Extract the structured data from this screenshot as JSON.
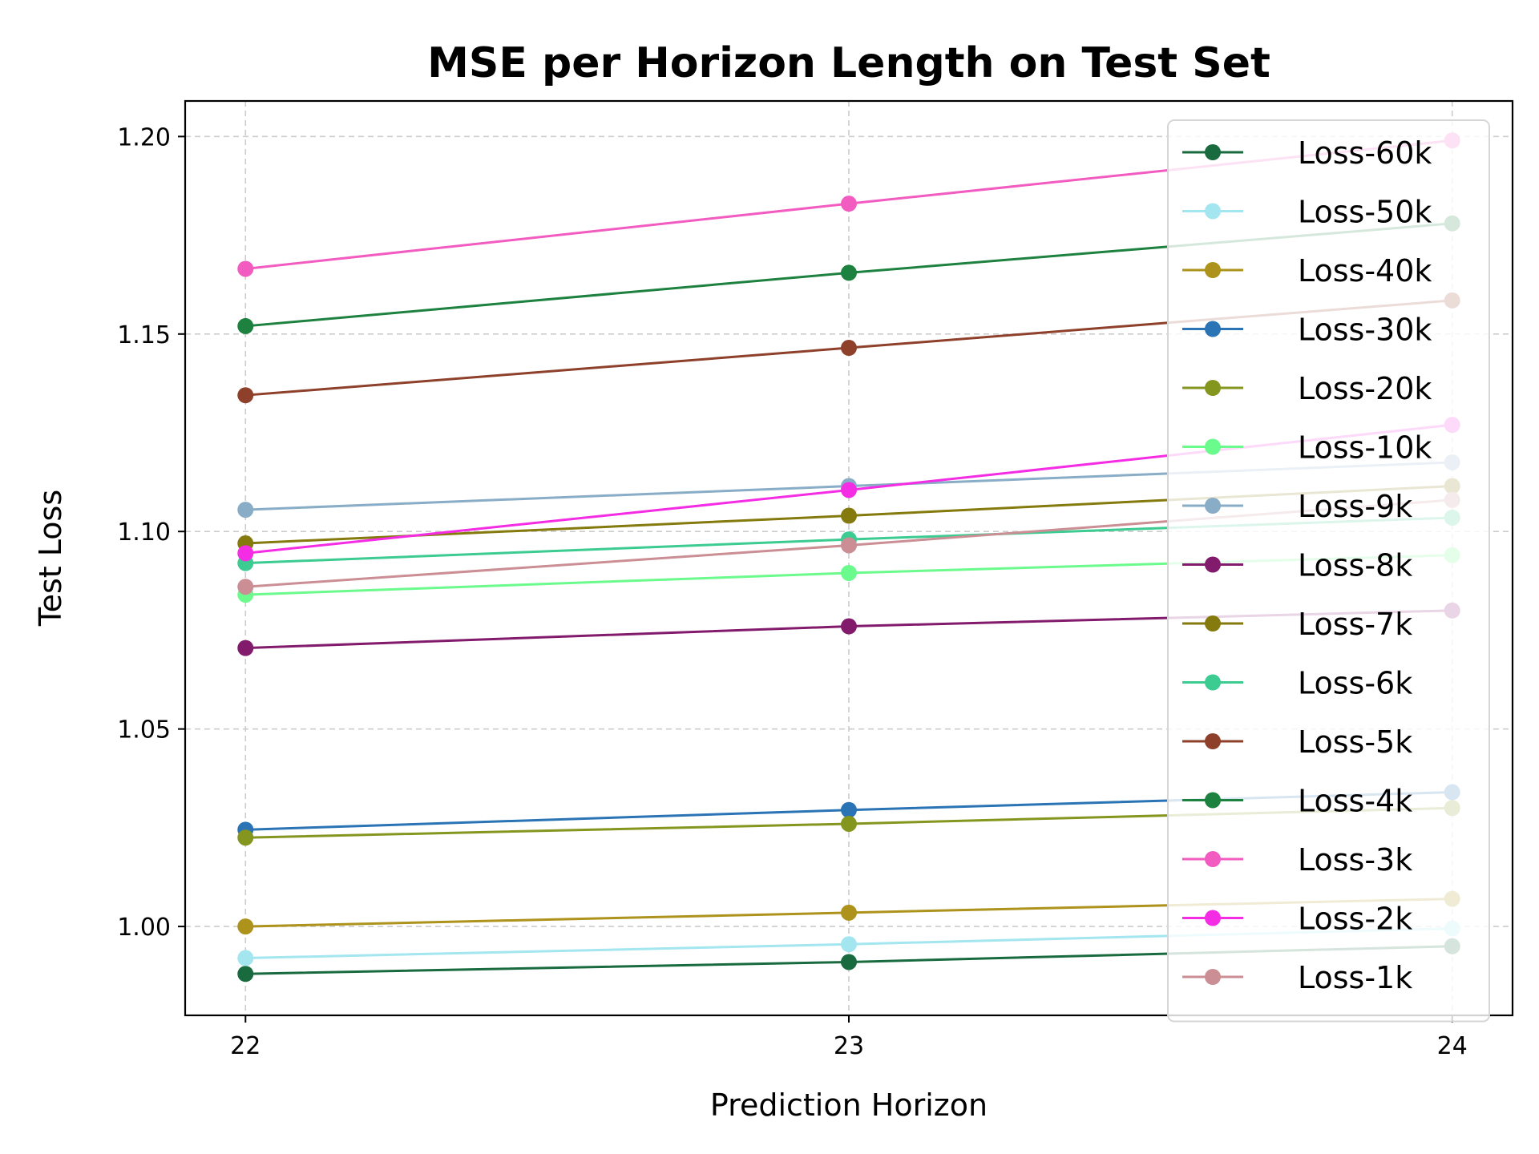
{
  "chart_data": {
    "type": "line",
    "title": "MSE per Horizon Length on Test Set",
    "xlabel": "Prediction Horizon",
    "ylabel": "Test Loss",
    "x": [
      22,
      23,
      24
    ],
    "x_ticks": [
      "22",
      "23",
      "24"
    ],
    "y_ticks": [
      "1.00",
      "1.05",
      "1.10",
      "1.15",
      "1.20"
    ],
    "xlim": [
      21.9,
      24.1
    ],
    "ylim": [
      0.9775,
      1.209
    ],
    "grid": true,
    "legend_position": "upper right",
    "series": [
      {
        "name": "Loss-60k",
        "color": "#196b3f",
        "values": [
          0.988,
          0.991,
          0.995
        ]
      },
      {
        "name": "Loss-50k",
        "color": "#a3e6f0",
        "values": [
          0.992,
          0.9955,
          0.9995
        ]
      },
      {
        "name": "Loss-40k",
        "color": "#ad921b",
        "values": [
          1.0,
          1.0035,
          1.007
        ]
      },
      {
        "name": "Loss-30k",
        "color": "#2a73b4",
        "values": [
          1.0245,
          1.0295,
          1.034
        ]
      },
      {
        "name": "Loss-20k",
        "color": "#85961f",
        "values": [
          1.0225,
          1.026,
          1.03
        ]
      },
      {
        "name": "Loss-10k",
        "color": "#6bfa8c",
        "values": [
          1.084,
          1.0895,
          1.094
        ]
      },
      {
        "name": "Loss-9k",
        "color": "#89adc7",
        "values": [
          1.1055,
          1.1115,
          1.1175
        ]
      },
      {
        "name": "Loss-8k",
        "color": "#831b6d",
        "values": [
          1.0705,
          1.076,
          1.08
        ]
      },
      {
        "name": "Loss-7k",
        "color": "#857a0d",
        "values": [
          1.097,
          1.104,
          1.1115
        ]
      },
      {
        "name": "Loss-6k",
        "color": "#3ccb91",
        "values": [
          1.092,
          1.098,
          1.1035
        ]
      },
      {
        "name": "Loss-5k",
        "color": "#8e402b",
        "values": [
          1.1345,
          1.1465,
          1.1585
        ]
      },
      {
        "name": "Loss-4k",
        "color": "#1d813f",
        "values": [
          1.152,
          1.1655,
          1.178
        ]
      },
      {
        "name": "Loss-3k",
        "color": "#f25bc0",
        "values": [
          1.1665,
          1.183,
          1.199
        ]
      },
      {
        "name": "Loss-2k",
        "color": "#f42ce4",
        "values": [
          1.0945,
          1.1105,
          1.127
        ]
      },
      {
        "name": "Loss-1k",
        "color": "#cb8e94",
        "values": [
          1.086,
          1.0965,
          1.108
        ]
      }
    ]
  }
}
